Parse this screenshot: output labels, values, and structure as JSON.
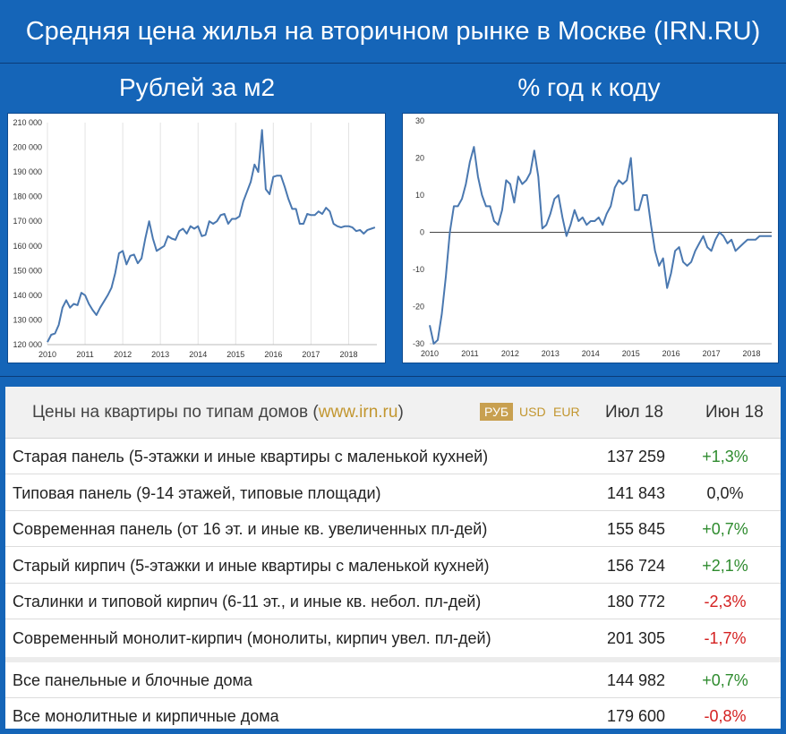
{
  "header": {
    "title": "Средняя цена жилья на вторичном рынке в Москве (IRN.RU)"
  },
  "colors": {
    "background": "#1565b8",
    "line": "#4a78b0",
    "positive": "#2e8b2e",
    "negative": "#d42020",
    "link": "#c2962f"
  },
  "chart_data": [
    {
      "type": "line",
      "title": "Рублей за м2",
      "xlabel": "",
      "ylabel": "",
      "xlim": [
        2010,
        2018.75
      ],
      "ylim": [
        120000,
        210000
      ],
      "x_ticks": [
        "2010",
        "2011",
        "2012",
        "2013",
        "2014",
        "2015",
        "2016",
        "2017",
        "2018"
      ],
      "y_ticks": [
        "120 000",
        "130 000",
        "140 000",
        "150 000",
        "160 000",
        "170 000",
        "180 000",
        "190 000",
        "200 000",
        "210 000"
      ],
      "grid": "vertical",
      "x": [
        2010.0,
        2010.1,
        2010.2,
        2010.3,
        2010.4,
        2010.5,
        2010.6,
        2010.7,
        2010.8,
        2010.9,
        2011.0,
        2011.1,
        2011.2,
        2011.3,
        2011.4,
        2011.5,
        2011.6,
        2011.7,
        2011.8,
        2011.9,
        2012.0,
        2012.1,
        2012.2,
        2012.3,
        2012.4,
        2012.5,
        2012.6,
        2012.7,
        2012.8,
        2012.9,
        2013.0,
        2013.1,
        2013.2,
        2013.3,
        2013.4,
        2013.5,
        2013.6,
        2013.7,
        2013.8,
        2013.9,
        2014.0,
        2014.1,
        2014.2,
        2014.3,
        2014.4,
        2014.5,
        2014.6,
        2014.7,
        2014.8,
        2014.9,
        2015.0,
        2015.1,
        2015.2,
        2015.3,
        2015.4,
        2015.5,
        2015.6,
        2015.7,
        2015.8,
        2015.9,
        2016.0,
        2016.1,
        2016.2,
        2016.3,
        2016.4,
        2016.5,
        2016.6,
        2016.7,
        2016.8,
        2016.9,
        2017.0,
        2017.1,
        2017.2,
        2017.3,
        2017.4,
        2017.5,
        2017.6,
        2017.7,
        2017.8,
        2017.9,
        2018.0,
        2018.1,
        2018.2,
        2018.3,
        2018.4,
        2018.5,
        2018.6
      ],
      "values": [
        121000,
        124000,
        124500,
        128000,
        135000,
        138000,
        135000,
        136500,
        136000,
        141000,
        140000,
        136500,
        134000,
        132000,
        135000,
        137500,
        140000,
        143000,
        149000,
        157000,
        158000,
        152500,
        156000,
        156500,
        153000,
        155000,
        163000,
        170000,
        163000,
        158000,
        159000,
        160000,
        164000,
        163000,
        162500,
        166000,
        167000,
        165000,
        168000,
        167000,
        168000,
        164000,
        164500,
        170000,
        169000,
        170000,
        172500,
        173000,
        169000,
        171000,
        171000,
        172000,
        178000,
        182000,
        186000,
        193000,
        190000,
        207000,
        183000,
        181000,
        188000,
        188500,
        188500,
        184000,
        179000,
        175000,
        175000,
        169000,
        169000,
        173000,
        172500,
        172500,
        174000,
        173000,
        175500,
        174000,
        169000,
        168000,
        167500,
        168000,
        168000,
        167500,
        166000,
        166500,
        165000,
        166500,
        167000
      ],
      "values_tail": [
        167500
      ]
    },
    {
      "type": "line",
      "title": "% год к коду",
      "xlabel": "",
      "ylabel": "",
      "xlim": [
        2010,
        2018.5
      ],
      "ylim": [
        -30,
        30
      ],
      "x_ticks": [
        "2010",
        "2011",
        "2012",
        "2013",
        "2014",
        "2015",
        "2016",
        "2017",
        "2018"
      ],
      "y_ticks": [
        "-30",
        "-20",
        "-10",
        "0",
        "10",
        "20",
        "30"
      ],
      "grid": "none",
      "zero_line": true,
      "x": [
        2010.0,
        2010.1,
        2010.2,
        2010.3,
        2010.4,
        2010.5,
        2010.6,
        2010.7,
        2010.8,
        2010.9,
        2011.0,
        2011.1,
        2011.2,
        2011.3,
        2011.4,
        2011.5,
        2011.6,
        2011.7,
        2011.8,
        2011.9,
        2012.0,
        2012.1,
        2012.2,
        2012.3,
        2012.4,
        2012.5,
        2012.6,
        2012.7,
        2012.8,
        2012.9,
        2013.0,
        2013.1,
        2013.2,
        2013.3,
        2013.4,
        2013.5,
        2013.6,
        2013.7,
        2013.8,
        2013.9,
        2014.0,
        2014.1,
        2014.2,
        2014.3,
        2014.4,
        2014.5,
        2014.6,
        2014.7,
        2014.8,
        2014.9,
        2015.0,
        2015.1,
        2015.2,
        2015.3,
        2015.4,
        2015.5,
        2015.6,
        2015.7,
        2015.8,
        2015.9,
        2016.0,
        2016.1,
        2016.2,
        2016.3,
        2016.4,
        2016.5,
        2016.6,
        2016.7,
        2016.8,
        2016.9,
        2017.0,
        2017.1,
        2017.2,
        2017.3,
        2017.4,
        2017.5,
        2017.6,
        2017.7,
        2017.8,
        2017.9,
        2018.0,
        2018.1,
        2018.2,
        2018.3,
        2018.4,
        2018.5
      ],
      "values": [
        -25,
        -30,
        -29,
        -22,
        -12,
        0,
        7,
        7,
        9,
        13,
        19,
        23,
        15,
        10,
        7,
        7,
        3,
        2,
        6,
        14,
        13,
        8,
        15,
        13,
        14,
        16,
        22,
        15,
        1,
        2,
        5,
        9,
        10,
        4,
        -1,
        2,
        6,
        3,
        4,
        2,
        3,
        3,
        4,
        2,
        5,
        7,
        12,
        14,
        13,
        14,
        20,
        6,
        6,
        10,
        10,
        2,
        -5,
        -9,
        -7,
        -15,
        -11,
        -5,
        -4,
        -8,
        -9,
        -8,
        -5,
        -3,
        -1,
        -4,
        -5,
        -2,
        0,
        -1,
        -3,
        -2,
        -5,
        -4,
        -3,
        -2,
        -2,
        -2,
        -1,
        -1,
        -1,
        -1
      ]
    }
  ],
  "table": {
    "title_prefix": "Цены на квартиры по типам домов (",
    "title_link": "www.irn.ru",
    "title_suffix": ")",
    "currencies": [
      "РУБ",
      "USD",
      "EUR"
    ],
    "col_current": "Июл 18",
    "col_prev": "Июн 18",
    "rows": [
      {
        "name": "Старая панель (5-этажки и иные квартиры с маленькой кухней)",
        "value": "137 259",
        "change": "+1,3%",
        "dir": "pos"
      },
      {
        "name": "Типовая панель (9-14 этажей, типовые площади)",
        "value": "141 843",
        "change": "0,0%",
        "dir": "zero"
      },
      {
        "name": "Современная панель (от 16 эт. и иные кв. увеличенных пл-дей)",
        "value": "155 845",
        "change": "+0,7%",
        "dir": "pos"
      },
      {
        "name": "Старый кирпич (5-этажки и иные квартиры с маленькой кухней)",
        "value": "156 724",
        "change": "+2,1%",
        "dir": "pos"
      },
      {
        "name": "Сталинки и типовой кирпич (6-11 эт., и иные кв. небол. пл-дей)",
        "value": "180 772",
        "change": "-2,3%",
        "dir": "neg"
      },
      {
        "name": "Современный монолит-кирпич (монолиты, кирпич увел. пл-дей)",
        "value": "201 305",
        "change": "-1,7%",
        "dir": "neg"
      },
      {
        "name": "Все панельные и блочные дома",
        "value": "144 982",
        "change": "+0,7%",
        "dir": "pos"
      },
      {
        "name": "Все монолитные и кирпичные дома",
        "value": "179 600",
        "change": "-0,8%",
        "dir": "neg"
      }
    ]
  }
}
